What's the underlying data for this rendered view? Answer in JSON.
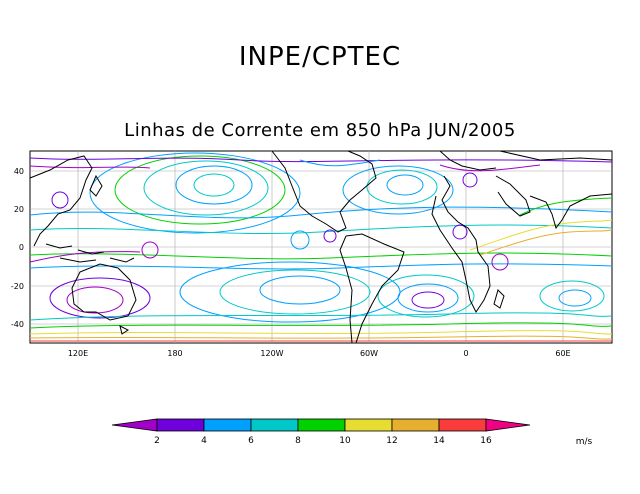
{
  "header": {
    "title": "INPE/CPTEC",
    "subtitle": "Linhas de Corrente em 850 hPa JUN/2005"
  },
  "map": {
    "y_ticks": [
      "40",
      "20",
      "0",
      "-20",
      "-40"
    ],
    "x_ticks": [
      "120E",
      "180",
      "120W",
      "60W",
      "0",
      "60E"
    ]
  },
  "legend": {
    "unit": "m/s",
    "labels": [
      "2",
      "4",
      "6",
      "8",
      "10",
      "12",
      "14",
      "16"
    ],
    "colors": [
      "#a000c8",
      "#6e00dc",
      "#00a0ff",
      "#00c8c8",
      "#00d200",
      "#e6dc32",
      "#e6af2d",
      "#fa3c3c",
      "#f00082"
    ]
  }
}
